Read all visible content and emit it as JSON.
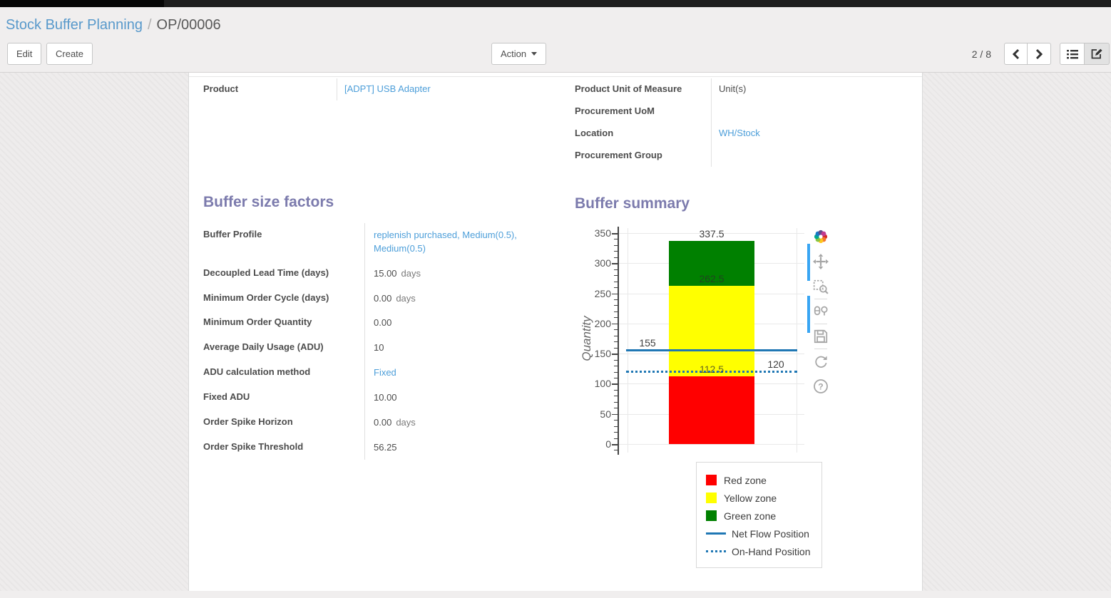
{
  "breadcrumb": {
    "parent": "Stock Buffer Planning",
    "separator": "/",
    "current": "OP/00006"
  },
  "toolbar": {
    "edit_label": "Edit",
    "create_label": "Create",
    "action_label": "Action",
    "pager": "2 / 8",
    "icons": [
      "previous-page-icon",
      "next-page-icon",
      "list-view-icon",
      "form-view-icon"
    ],
    "active_view": "form-view-icon"
  },
  "form": {
    "info_group_left": [
      {
        "label": "Product",
        "value": "[ADPT] USB Adapter",
        "link": true
      }
    ],
    "info_group_right": [
      {
        "label": "Product Unit of Measure",
        "value": "Unit(s)",
        "link": false
      },
      {
        "label": "Procurement UoM",
        "value": "",
        "link": false
      },
      {
        "label": "Location",
        "value": "WH/Stock",
        "link": true
      },
      {
        "label": "Procurement Group",
        "value": "",
        "link": false
      }
    ],
    "sections": {
      "left_title": "Buffer size factors",
      "right_title": "Buffer summary"
    },
    "buffer_factors": [
      {
        "label": "Buffer Profile",
        "value": "replenish purchased, Medium(0.5), Medium(0.5)",
        "link": true
      },
      {
        "label": "Decoupled Lead Time (days)",
        "value": "15.00",
        "suffix": "days"
      },
      {
        "label": "Minimum Order Cycle (days)",
        "value": "0.00",
        "suffix": "days"
      },
      {
        "label": "Minimum Order Quantity",
        "value": "0.00"
      },
      {
        "label": "Average Daily Usage (ADU)",
        "value": "10"
      },
      {
        "label": "ADU calculation method",
        "value": "Fixed",
        "link": true
      },
      {
        "label": "Fixed ADU",
        "value": "10.00"
      },
      {
        "label": "Order Spike Horizon",
        "value": "0.00",
        "suffix": "days"
      },
      {
        "label": "Order Spike Threshold",
        "value": "56.25"
      }
    ]
  },
  "chart_data": {
    "type": "bar",
    "stacked": true,
    "title": "Buffer summary",
    "xlabel": "",
    "ylabel": "Quantity",
    "ylim": [
      0,
      350
    ],
    "yticks": [
      0,
      50,
      100,
      150,
      200,
      250,
      300,
      350
    ],
    "minor_tick_step": 10,
    "grid": true,
    "categories": [
      ""
    ],
    "series": [
      {
        "name": "Red zone",
        "color": "#ff0000",
        "from": 0,
        "to": 112.5
      },
      {
        "name": "Yellow zone",
        "color": "#ffff00",
        "from": 112.5,
        "to": 262.5
      },
      {
        "name": "Green zone",
        "color": "#008000",
        "from": 262.5,
        "to": 337.5
      }
    ],
    "lines": [
      {
        "name": "Net Flow Position",
        "value": 155,
        "style": "solid",
        "color": "#1f77b4",
        "label": "155",
        "label_side": "left"
      },
      {
        "name": "On-Hand Position",
        "value": 120,
        "style": "dotted",
        "color": "#1f77b4",
        "label": "120",
        "label_side": "right"
      }
    ],
    "bar_labels": [
      {
        "text": "337.5",
        "value": 337.5,
        "muted": false
      },
      {
        "text": "262.5",
        "value": 262.5,
        "muted": true
      },
      {
        "text": "112.5",
        "value": 112.5,
        "muted": true
      }
    ],
    "legend_position": "below-right",
    "legend": [
      {
        "label": "Red zone",
        "swatch": "square",
        "color": "#ff0000"
      },
      {
        "label": "Yellow zone",
        "swatch": "square",
        "color": "#ffff00"
      },
      {
        "label": "Green zone",
        "swatch": "square",
        "color": "#008000"
      },
      {
        "label": "Net Flow Position",
        "swatch": "line",
        "color": "#1f77b4"
      },
      {
        "label": "On-Hand Position",
        "swatch": "dotted",
        "color": "#1f77b4"
      }
    ],
    "modebar_icons": [
      "plotly-logo-icon",
      "pan-icon",
      "box-zoom-icon",
      "compare-hover-icon",
      "save-icon",
      "reset-axes-icon",
      "help-icon"
    ]
  },
  "colors": {
    "heading": "#7c7bad",
    "breadcrumb_link": "#5899cb",
    "field_link": "#4c9ed9",
    "text": "#4c4c4c"
  }
}
